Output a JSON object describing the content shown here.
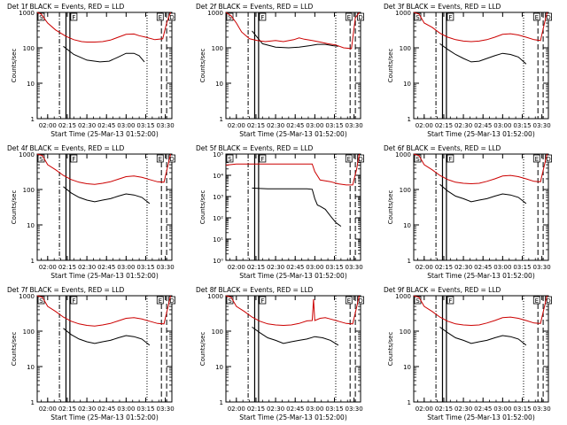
{
  "colors": {
    "events": "#000000",
    "lld": "#cc0000",
    "axes": "#000000",
    "background": "#ffffff"
  },
  "shared": {
    "xlabel": "Start Time (25-Mar-13 01:52:00)",
    "ylabel": "Counts/sec",
    "x_tick_labels": [
      "02:00",
      "02:15",
      "02:30",
      "02:45",
      "03:00",
      "03:15",
      "03:30"
    ],
    "x_tick_minutes": [
      8,
      23,
      38,
      53,
      68,
      83,
      98
    ],
    "xlim_minutes": [
      0,
      103
    ],
    "ylog": true,
    "y_tick_labels_standard": [
      "1",
      "10",
      "100",
      "1000"
    ],
    "y_tick_labels_det5": [
      "10⁰",
      "10¹",
      "10²",
      "10³",
      "10⁴",
      "10⁵"
    ],
    "marker_labels": {
      "start": "S",
      "flare": "F",
      "end": "E",
      "d": "D"
    },
    "marker_minutes": {
      "start": 0,
      "dashdot_1": 17,
      "flare_1": 22,
      "flare_2": 25,
      "dotted_1": 84,
      "dash_1": 95,
      "dash_2": 99,
      "end_e": 91,
      "end_d": 100
    }
  },
  "chart_data": [
    {
      "type": "line",
      "title": "Det 1f BLACK = Events, RED = LLD",
      "ylim": [
        1,
        1000
      ],
      "series": [
        {
          "name": "Events",
          "x": [
            0,
            8,
            14,
            20,
            28,
            38,
            48,
            55,
            62,
            68,
            74,
            78,
            82,
            88
          ],
          "values": [
            null,
            null,
            null,
            110,
            65,
            45,
            40,
            42,
            55,
            70,
            70,
            60,
            40,
            null
          ]
        },
        {
          "name": "LLD",
          "x": [
            0,
            3,
            8,
            14,
            22,
            28,
            34,
            38,
            44,
            50,
            56,
            62,
            68,
            74,
            78,
            83,
            90,
            96,
            99,
            102
          ],
          "values": [
            1000,
            900,
            500,
            320,
            210,
            170,
            150,
            145,
            145,
            150,
            165,
            200,
            240,
            245,
            220,
            200,
            170,
            180,
            500,
            1000
          ]
        }
      ]
    },
    {
      "type": "line",
      "title": "Det 2f BLACK = Events, RED = LLD",
      "ylim": [
        1,
        1000
      ],
      "series": [
        {
          "name": "Events",
          "x": [
            20,
            28,
            38,
            48,
            56,
            64,
            70,
            76,
            82,
            86
          ],
          "values": [
            300,
            130,
            105,
            100,
            105,
            115,
            125,
            125,
            115,
            110
          ]
        },
        {
          "name": "LLD",
          "x": [
            0,
            4,
            8,
            12,
            18,
            24,
            30,
            38,
            44,
            52,
            56,
            60,
            66,
            72,
            78,
            84,
            90,
            96,
            99,
            102
          ],
          "values": [
            1000,
            800,
            500,
            280,
            180,
            160,
            150,
            160,
            150,
            170,
            190,
            175,
            160,
            145,
            130,
            120,
            100,
            95,
            700,
            1000
          ]
        }
      ]
    },
    {
      "type": "line",
      "title": "Det 3f BLACK = Events, RED = LLD",
      "ylim": [
        1,
        1000
      ],
      "series": [
        {
          "name": "Events",
          "x": [
            20,
            26,
            32,
            38,
            44,
            50,
            56,
            62,
            68,
            74,
            80,
            86
          ],
          "values": [
            130,
            90,
            65,
            50,
            40,
            42,
            50,
            60,
            70,
            65,
            55,
            35
          ]
        },
        {
          "name": "LLD",
          "x": [
            0,
            4,
            8,
            14,
            20,
            26,
            32,
            38,
            44,
            50,
            56,
            62,
            68,
            74,
            80,
            86,
            92,
            97,
            100,
            102
          ],
          "values": [
            1000,
            900,
            500,
            380,
            260,
            200,
            170,
            155,
            150,
            155,
            170,
            200,
            240,
            250,
            230,
            200,
            170,
            160,
            500,
            1000
          ]
        }
      ]
    },
    {
      "type": "line",
      "title": "Det 4f BLACK = Events, RED = LLD",
      "ylim": [
        1,
        1000
      ],
      "series": [
        {
          "name": "Events",
          "x": [
            20,
            26,
            32,
            38,
            44,
            50,
            56,
            62,
            68,
            74,
            80,
            86
          ],
          "values": [
            120,
            80,
            60,
            50,
            45,
            50,
            55,
            65,
            75,
            70,
            60,
            40
          ]
        },
        {
          "name": "LLD",
          "x": [
            0,
            4,
            8,
            14,
            20,
            26,
            32,
            38,
            44,
            50,
            56,
            62,
            68,
            74,
            80,
            86,
            92,
            97,
            100,
            102
          ],
          "values": [
            1000,
            900,
            500,
            360,
            250,
            190,
            160,
            145,
            140,
            150,
            165,
            195,
            230,
            240,
            220,
            190,
            165,
            160,
            480,
            1000
          ]
        }
      ]
    },
    {
      "type": "line",
      "title": "Det 5f BLACK = Events, RED = LLD",
      "ylim": [
        1,
        100000
      ],
      "series": [
        {
          "name": "Events",
          "x": [
            20,
            26,
            32,
            38,
            44,
            50,
            56,
            62,
            66,
            68,
            70,
            72,
            76,
            80,
            84,
            88
          ],
          "values": [
            2500,
            2400,
            2300,
            2300,
            2300,
            2300,
            2300,
            2300,
            2200,
            800,
            400,
            350,
            250,
            120,
            60,
            40
          ]
        },
        {
          "name": "LLD",
          "x": [
            0,
            4,
            8,
            14,
            20,
            26,
            32,
            38,
            44,
            50,
            56,
            62,
            66,
            68,
            72,
            76,
            80,
            86,
            92,
            97,
            100,
            102
          ],
          "values": [
            30000,
            32000,
            34000,
            34000,
            34000,
            34000,
            34000,
            34000,
            34000,
            34000,
            34000,
            34000,
            34000,
            15000,
            6000,
            5500,
            5000,
            4000,
            3500,
            3500,
            20000,
            100000
          ]
        }
      ]
    },
    {
      "type": "line",
      "title": "Det 6f BLACK = Events, RED = LLD",
      "ylim": [
        1,
        1000
      ],
      "series": [
        {
          "name": "Events",
          "x": [
            20,
            26,
            32,
            38,
            44,
            50,
            56,
            62,
            68,
            74,
            80,
            86
          ],
          "values": [
            140,
            90,
            65,
            55,
            45,
            50,
            55,
            65,
            75,
            70,
            60,
            40
          ]
        },
        {
          "name": "LLD",
          "x": [
            0,
            4,
            8,
            14,
            20,
            26,
            32,
            38,
            44,
            50,
            56,
            62,
            68,
            74,
            80,
            86,
            92,
            97,
            100,
            102
          ],
          "values": [
            1000,
            900,
            500,
            360,
            250,
            190,
            160,
            150,
            145,
            150,
            170,
            200,
            240,
            250,
            230,
            200,
            170,
            165,
            500,
            1000
          ]
        }
      ]
    },
    {
      "type": "line",
      "title": "Det 7f BLACK = Events, RED = LLD",
      "ylim": [
        1,
        1000
      ],
      "series": [
        {
          "name": "Events",
          "x": [
            20,
            26,
            32,
            38,
            44,
            50,
            56,
            62,
            68,
            74,
            80,
            86
          ],
          "values": [
            120,
            80,
            60,
            50,
            45,
            50,
            55,
            65,
            75,
            70,
            60,
            40
          ]
        },
        {
          "name": "LLD",
          "x": [
            0,
            4,
            8,
            14,
            20,
            26,
            32,
            38,
            44,
            50,
            56,
            62,
            68,
            74,
            80,
            86,
            92,
            97,
            100,
            102
          ],
          "values": [
            1000,
            900,
            500,
            360,
            250,
            190,
            160,
            145,
            140,
            150,
            165,
            195,
            230,
            240,
            220,
            190,
            165,
            160,
            480,
            1000
          ]
        }
      ]
    },
    {
      "type": "line",
      "title": "Det 8f BLACK = Events, RED = LLD",
      "ylim": [
        1,
        1000
      ],
      "series": [
        {
          "name": "Events",
          "x": [
            20,
            26,
            32,
            38,
            44,
            50,
            56,
            62,
            68,
            74,
            80,
            86
          ],
          "values": [
            130,
            90,
            65,
            55,
            45,
            50,
            55,
            60,
            70,
            65,
            55,
            40
          ]
        },
        {
          "name": "LLD",
          "x": [
            0,
            4,
            8,
            14,
            20,
            26,
            32,
            38,
            44,
            50,
            56,
            62,
            66,
            67,
            68,
            72,
            76,
            80,
            86,
            92,
            97,
            100,
            102
          ],
          "values": [
            1000,
            900,
            500,
            360,
            250,
            190,
            160,
            150,
            145,
            150,
            165,
            195,
            200,
            800,
            200,
            230,
            240,
            220,
            190,
            165,
            160,
            480,
            1000
          ]
        }
      ]
    },
    {
      "type": "line",
      "title": "Det 9f BLACK = Events, RED = LLD",
      "ylim": [
        1,
        1000
      ],
      "series": [
        {
          "name": "Events",
          "x": [
            20,
            26,
            32,
            38,
            44,
            50,
            56,
            62,
            68,
            74,
            80,
            86
          ],
          "values": [
            130,
            90,
            65,
            55,
            45,
            50,
            55,
            65,
            75,
            70,
            60,
            40
          ]
        },
        {
          "name": "LLD",
          "x": [
            0,
            4,
            8,
            14,
            20,
            26,
            32,
            38,
            44,
            50,
            56,
            62,
            68,
            74,
            80,
            86,
            92,
            97,
            100,
            102
          ],
          "values": [
            1000,
            900,
            500,
            360,
            250,
            190,
            160,
            150,
            145,
            150,
            170,
            200,
            240,
            250,
            230,
            200,
            170,
            165,
            500,
            1000
          ]
        }
      ]
    }
  ]
}
